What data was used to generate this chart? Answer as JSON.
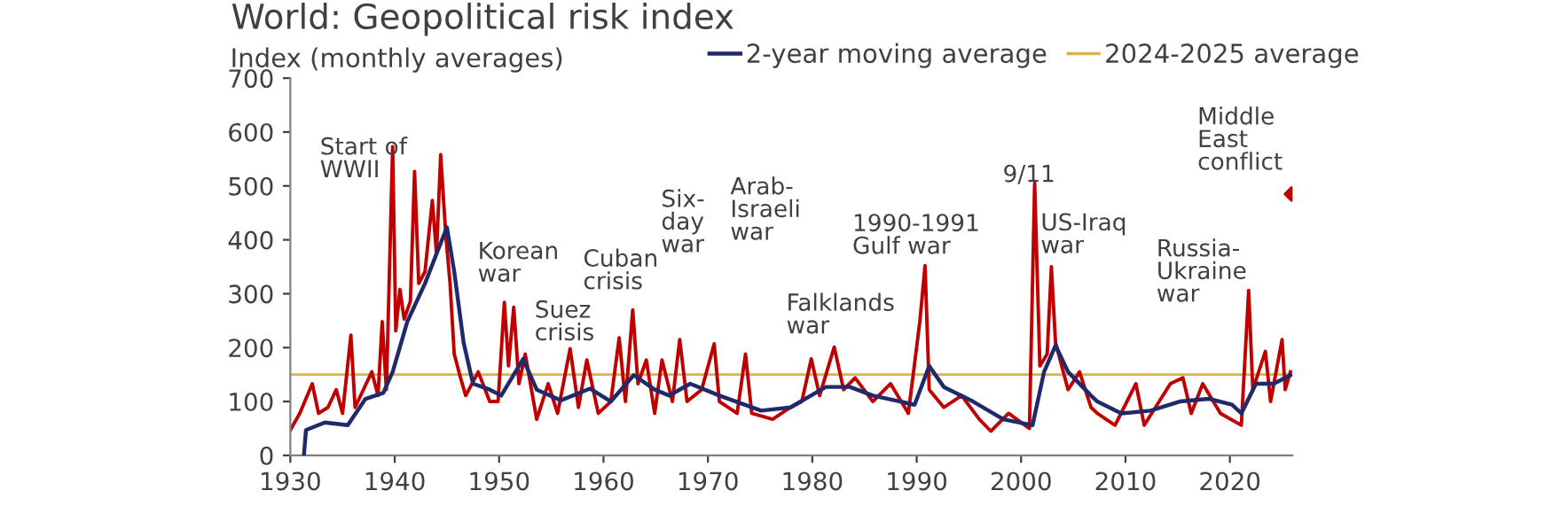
{
  "chart_data": {
    "type": "line",
    "title": "World: Geopolitical risk index",
    "ylabel": "Index (monthly averages)",
    "xlim": [
      1930,
      2026
    ],
    "xticks": [
      1930,
      1940,
      1950,
      1960,
      1970,
      1980,
      1990,
      2000,
      2010,
      2020
    ],
    "ylim": [
      0,
      700
    ],
    "yticks": [
      0,
      100,
      200,
      300,
      400,
      500,
      600,
      700
    ],
    "grid": false,
    "legend": "top right",
    "line_style": "solid",
    "series": [
      {
        "color": "#c00000",
        "x": [
          1930,
          1930.9,
          1932.1,
          1932.7,
          1933.6,
          1934.4,
          1935,
          1935.8,
          1936.2,
          1937.8,
          1938.4,
          1938.8,
          1939.2,
          1939.8,
          1940.1,
          1940.5,
          1940.9,
          1941.5,
          1941.9,
          1942.3,
          1942.9,
          1943.6,
          1944,
          1944.4,
          1944.9,
          1945.3,
          1945.7,
          1946.3,
          1946.8,
          1948,
          1949.1,
          1949.9,
          1950.5,
          1950.9,
          1951.4,
          1951.9,
          1952.5,
          1953.6,
          1954.7,
          1955.6,
          1956.8,
          1957.6,
          1958.4,
          1959.5,
          1960.7,
          1961.5,
          1962.1,
          1962.8,
          1963.3,
          1964.1,
          1964.9,
          1965.6,
          1966.6,
          1967.3,
          1968,
          1969.4,
          1970.6,
          1971.1,
          1972.8,
          1973.6,
          1974.2,
          1976.2,
          1977.9,
          1979,
          1979.9,
          1980.7,
          1982.1,
          1983,
          1984.1,
          1985.8,
          1987.5,
          1989.2,
          1990.3,
          1990.8,
          1991.2,
          1992.6,
          1994.3,
          1996,
          1997.1,
          1998.8,
          2000.8,
          2001.3,
          2001.8,
          2002.5,
          2002.9,
          2003.3,
          2004.5,
          2005.6,
          2006.7,
          2007.3,
          2009,
          2011,
          2011.8,
          2014.3,
          2015.5,
          2016.3,
          2017.4,
          2019.1,
          2021.1,
          2021.8,
          2022.2,
          2023.4,
          2023.9,
          2025,
          2025.3,
          2025.8
        ],
        "values": [
          47,
          78,
          133,
          78,
          89,
          122,
          78,
          223,
          89,
          155,
          111,
          248,
          122,
          573,
          231,
          308,
          253,
          286,
          527,
          319,
          341,
          473,
          374,
          558,
          407,
          319,
          188,
          144,
          111,
          155,
          100,
          100,
          284,
          166,
          275,
          133,
          188,
          67,
          133,
          78,
          198,
          89,
          177,
          78,
          100,
          218,
          100,
          270,
          133,
          177,
          78,
          177,
          100,
          215,
          100,
          122,
          207,
          100,
          78,
          188,
          78,
          67,
          89,
          100,
          179,
          111,
          201,
          122,
          144,
          100,
          133,
          78,
          248,
          352,
          122,
          89,
          111,
          67,
          45,
          78,
          50,
          505,
          166,
          188,
          350,
          209,
          122,
          155,
          89,
          78,
          56,
          133,
          56,
          133,
          144,
          78,
          133,
          78,
          56,
          306,
          122,
          193,
          100,
          215,
          122,
          155
        ]
      },
      {
        "name": "2-year moving average",
        "color": "#1f2a6b",
        "x": [
          1931.3,
          1931.5,
          1933.3,
          1935.5,
          1937.2,
          1938.9,
          1939.8,
          1941.2,
          1942.9,
          1944,
          1945,
          1945.7,
          1946.6,
          1947.5,
          1949.1,
          1950.2,
          1952.3,
          1953.6,
          1955.9,
          1958.7,
          1960.7,
          1962.9,
          1964.9,
          1966.3,
          1968.3,
          1971.1,
          1975.1,
          1977.9,
          1981.3,
          1983.6,
          1985.8,
          1989.8,
          1991.2,
          1992.6,
          1995.4,
          1998.3,
          2001.1,
          2002.2,
          2003.3,
          2004.5,
          2006.7,
          2007.3,
          2009.6,
          2012.4,
          2015.2,
          2018,
          2020.2,
          2021.1,
          2022.5,
          2024.2,
          2025.8
        ],
        "values": [
          0,
          47,
          61,
          56,
          105,
          116,
          155,
          248,
          319,
          374,
          423,
          341,
          209,
          133,
          122,
          111,
          179,
          122,
          102,
          124,
          100,
          149,
          122,
          111,
          133,
          111,
          83,
          89,
          127,
          127,
          111,
          94,
          166,
          127,
          100,
          67,
          56,
          155,
          204,
          155,
          111,
          100,
          78,
          83,
          100,
          105,
          94,
          78,
          133,
          133,
          149
        ]
      },
      {
        "type": "scatter",
        "marker": "diamond",
        "color": "#c00000",
        "x": [
          2025.9
        ],
        "values": [
          485
        ]
      }
    ],
    "ref_lines": [
      {
        "axis": "y",
        "value": 150,
        "label": "2024-2025 average",
        "color": "#e0b050"
      }
    ],
    "annotations": [
      {
        "text": "Start of\nWWII",
        "x": 1939.8,
        "y": 573
      },
      {
        "text": "Korean\nwar",
        "x": 1950.5,
        "y": 284
      },
      {
        "text": "Suez\ncrisis",
        "x": 1956.8,
        "y": 198
      },
      {
        "text": "Cuban\ncrisis",
        "x": 1962.8,
        "y": 270
      },
      "Six-\nday\nwar",
      "Arab-\nIsraeli\nwar",
      {
        "text": "Falklands\nwar",
        "x": 1982.1,
        "y": 201
      },
      {
        "text": "1990-1991\nGulf war",
        "x": 1990.8,
        "y": 352
      },
      {
        "text": "9/11",
        "x": 2001.3,
        "y": 505
      },
      {
        "text": "US-Iraq\nwar",
        "x": 2002.9,
        "y": 350
      },
      {
        "text": "Russia-\nUkraine\nwar",
        "x": 2021.8,
        "y": 306
      },
      {
        "text": "Middle\nEast\nconflict",
        "x": 2025.9,
        "y": 485
      }
    ]
  }
}
